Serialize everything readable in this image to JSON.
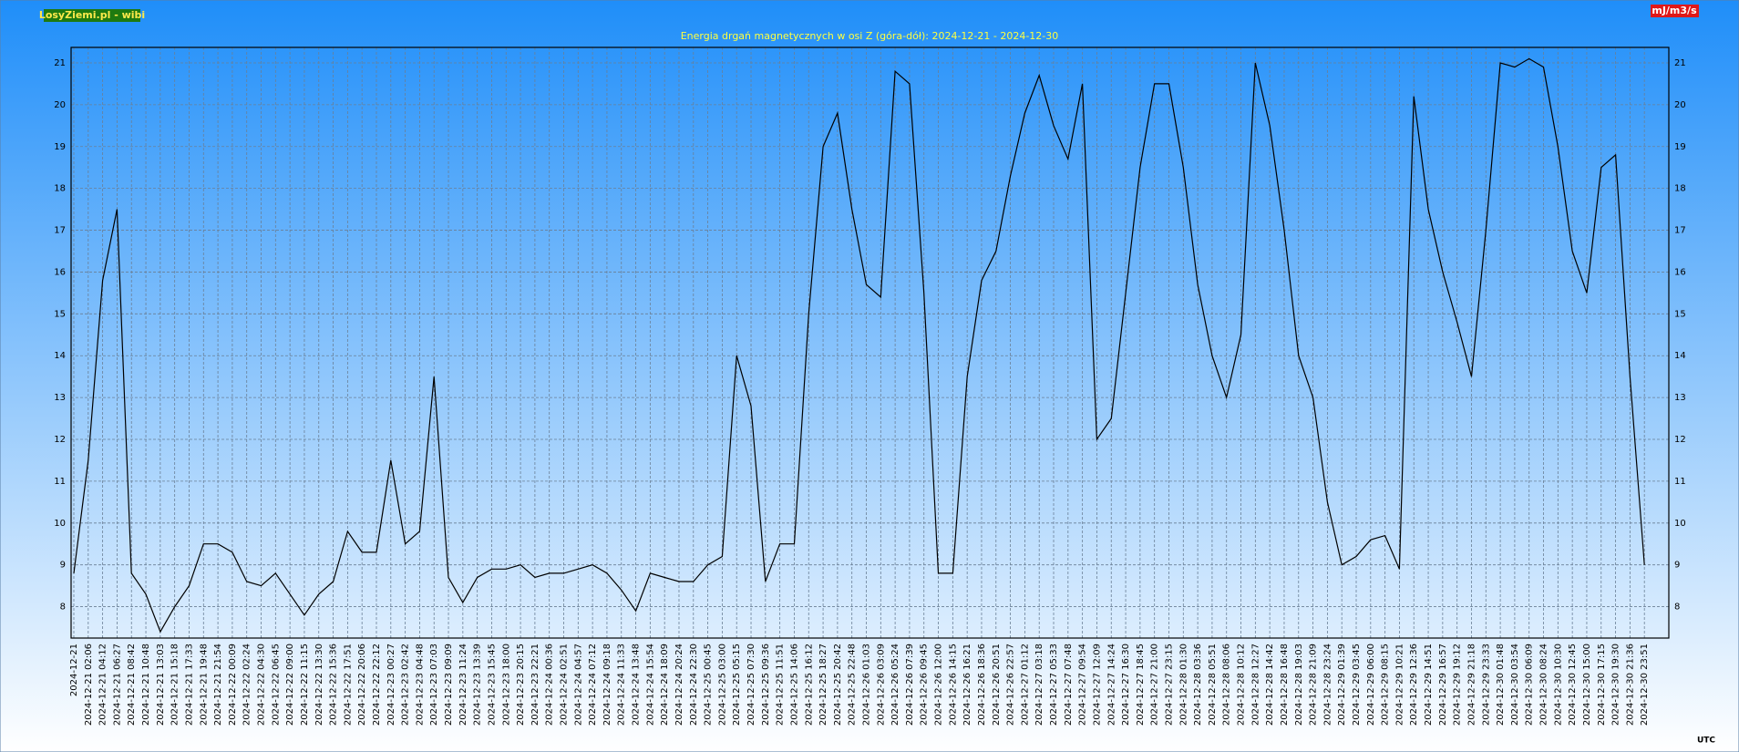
{
  "chart_data": {
    "type": "line",
    "title": "Energia drgań magnetycznych w osi Z (góra-dół): 2024-12-21 - 2024-12-30",
    "source": "LosyZiemi.pl - wibi",
    "unit": "mJ/m3/s",
    "x_unit": "UTC",
    "color": "#000000",
    "grid": true,
    "ylim": [
      7.25,
      21.37
    ],
    "yticks": [
      8,
      9,
      10,
      11,
      12,
      13,
      14,
      15,
      16,
      17,
      18,
      19,
      20,
      21
    ],
    "categories": [
      "2024-12-21",
      "2024-12-21 02:06",
      "2024-12-21 04:12",
      "2024-12-21 06:27",
      "2024-12-21 08:42",
      "2024-12-21 10:48",
      "2024-12-21 13:03",
      "2024-12-21 15:18",
      "2024-12-21 17:33",
      "2024-12-21 19:48",
      "2024-12-21 21:54",
      "2024-12-22 00:09",
      "2024-12-22 02:24",
      "2024-12-22 04:30",
      "2024-12-22 06:45",
      "2024-12-22 09:00",
      "2024-12-22 11:15",
      "2024-12-22 13:30",
      "2024-12-22 15:36",
      "2024-12-22 17:51",
      "2024-12-22 20:06",
      "2024-12-22 22:12",
      "2024-12-23 00:27",
      "2024-12-23 02:42",
      "2024-12-23 04:48",
      "2024-12-23 07:03",
      "2024-12-23 09:09",
      "2024-12-23 11:24",
      "2024-12-23 13:39",
      "2024-12-23 15:45",
      "2024-12-23 18:00",
      "2024-12-23 20:15",
      "2024-12-23 22:21",
      "2024-12-24 00:36",
      "2024-12-24 02:51",
      "2024-12-24 04:57",
      "2024-12-24 07:12",
      "2024-12-24 09:18",
      "2024-12-24 11:33",
      "2024-12-24 13:48",
      "2024-12-24 15:54",
      "2024-12-24 18:09",
      "2024-12-24 20:24",
      "2024-12-24 22:30",
      "2024-12-25 00:45",
      "2024-12-25 03:00",
      "2024-12-25 05:15",
      "2024-12-25 07:30",
      "2024-12-25 09:36",
      "2024-12-25 11:51",
      "2024-12-25 14:06",
      "2024-12-25 16:12",
      "2024-12-25 18:27",
      "2024-12-25 20:42",
      "2024-12-25 22:48",
      "2024-12-26 01:03",
      "2024-12-26 03:09",
      "2024-12-26 05:24",
      "2024-12-26 07:39",
      "2024-12-26 09:45",
      "2024-12-26 12:00",
      "2024-12-26 14:15",
      "2024-12-26 16:21",
      "2024-12-26 18:36",
      "2024-12-26 20:51",
      "2024-12-26 22:57",
      "2024-12-27 01:12",
      "2024-12-27 03:18",
      "2024-12-27 05:33",
      "2024-12-27 07:48",
      "2024-12-27 09:54",
      "2024-12-27 12:09",
      "2024-12-27 14:24",
      "2024-12-27 16:30",
      "2024-12-27 18:45",
      "2024-12-27 21:00",
      "2024-12-27 23:15",
      "2024-12-28 01:30",
      "2024-12-28 03:36",
      "2024-12-28 05:51",
      "2024-12-28 08:06",
      "2024-12-28 10:12",
      "2024-12-28 12:27",
      "2024-12-28 14:42",
      "2024-12-28 16:48",
      "2024-12-28 19:03",
      "2024-12-28 21:09",
      "2024-12-28 23:24",
      "2024-12-29 01:39",
      "2024-12-29 03:45",
      "2024-12-29 06:00",
      "2024-12-29 08:15",
      "2024-12-29 10:21",
      "2024-12-29 12:36",
      "2024-12-29 14:51",
      "2024-12-29 16:57",
      "2024-12-29 19:12",
      "2024-12-29 21:18",
      "2024-12-29 23:33",
      "2024-12-30 01:48",
      "2024-12-30 03:54",
      "2024-12-30 06:09",
      "2024-12-30 08:24",
      "2024-12-30 10:30",
      "2024-12-30 12:45",
      "2024-12-30 15:00",
      "2024-12-30 17:15",
      "2024-12-30 19:30",
      "2024-12-30 21:36",
      "2024-12-30 23:51"
    ],
    "values": [
      8.8,
      11.5,
      15.8,
      17.5,
      8.8,
      8.3,
      7.4,
      8.0,
      8.5,
      9.5,
      9.5,
      9.3,
      8.6,
      8.5,
      8.8,
      8.3,
      7.8,
      8.3,
      8.6,
      9.8,
      9.3,
      9.3,
      11.5,
      9.5,
      9.8,
      13.5,
      8.7,
      8.1,
      8.7,
      8.9,
      8.9,
      9.0,
      8.7,
      8.8,
      8.8,
      8.9,
      9.0,
      8.8,
      8.4,
      7.9,
      8.8,
      8.7,
      8.6,
      8.6,
      9.0,
      9.2,
      14.0,
      12.8,
      8.6,
      9.5,
      9.5,
      15.0,
      19.0,
      19.8,
      17.5,
      15.7,
      15.4,
      20.8,
      20.5,
      15.5,
      8.8,
      8.8,
      13.5,
      15.8,
      16.5,
      18.3,
      19.8,
      20.7,
      19.5,
      18.7,
      20.5,
      12.0,
      12.5,
      15.5,
      18.5,
      20.5,
      20.5,
      18.5,
      15.7,
      14.0,
      13.0,
      14.5,
      21.0,
      19.5,
      17.0,
      14.0,
      13.0,
      10.5,
      9.0,
      9.2,
      9.6,
      9.7,
      8.9,
      20.2,
      17.5,
      16.0,
      14.8,
      13.5,
      17.0,
      21.0,
      20.9,
      21.1,
      20.9,
      19.0,
      16.5,
      15.5,
      18.5,
      18.8,
      13.5,
      9.0
    ]
  }
}
